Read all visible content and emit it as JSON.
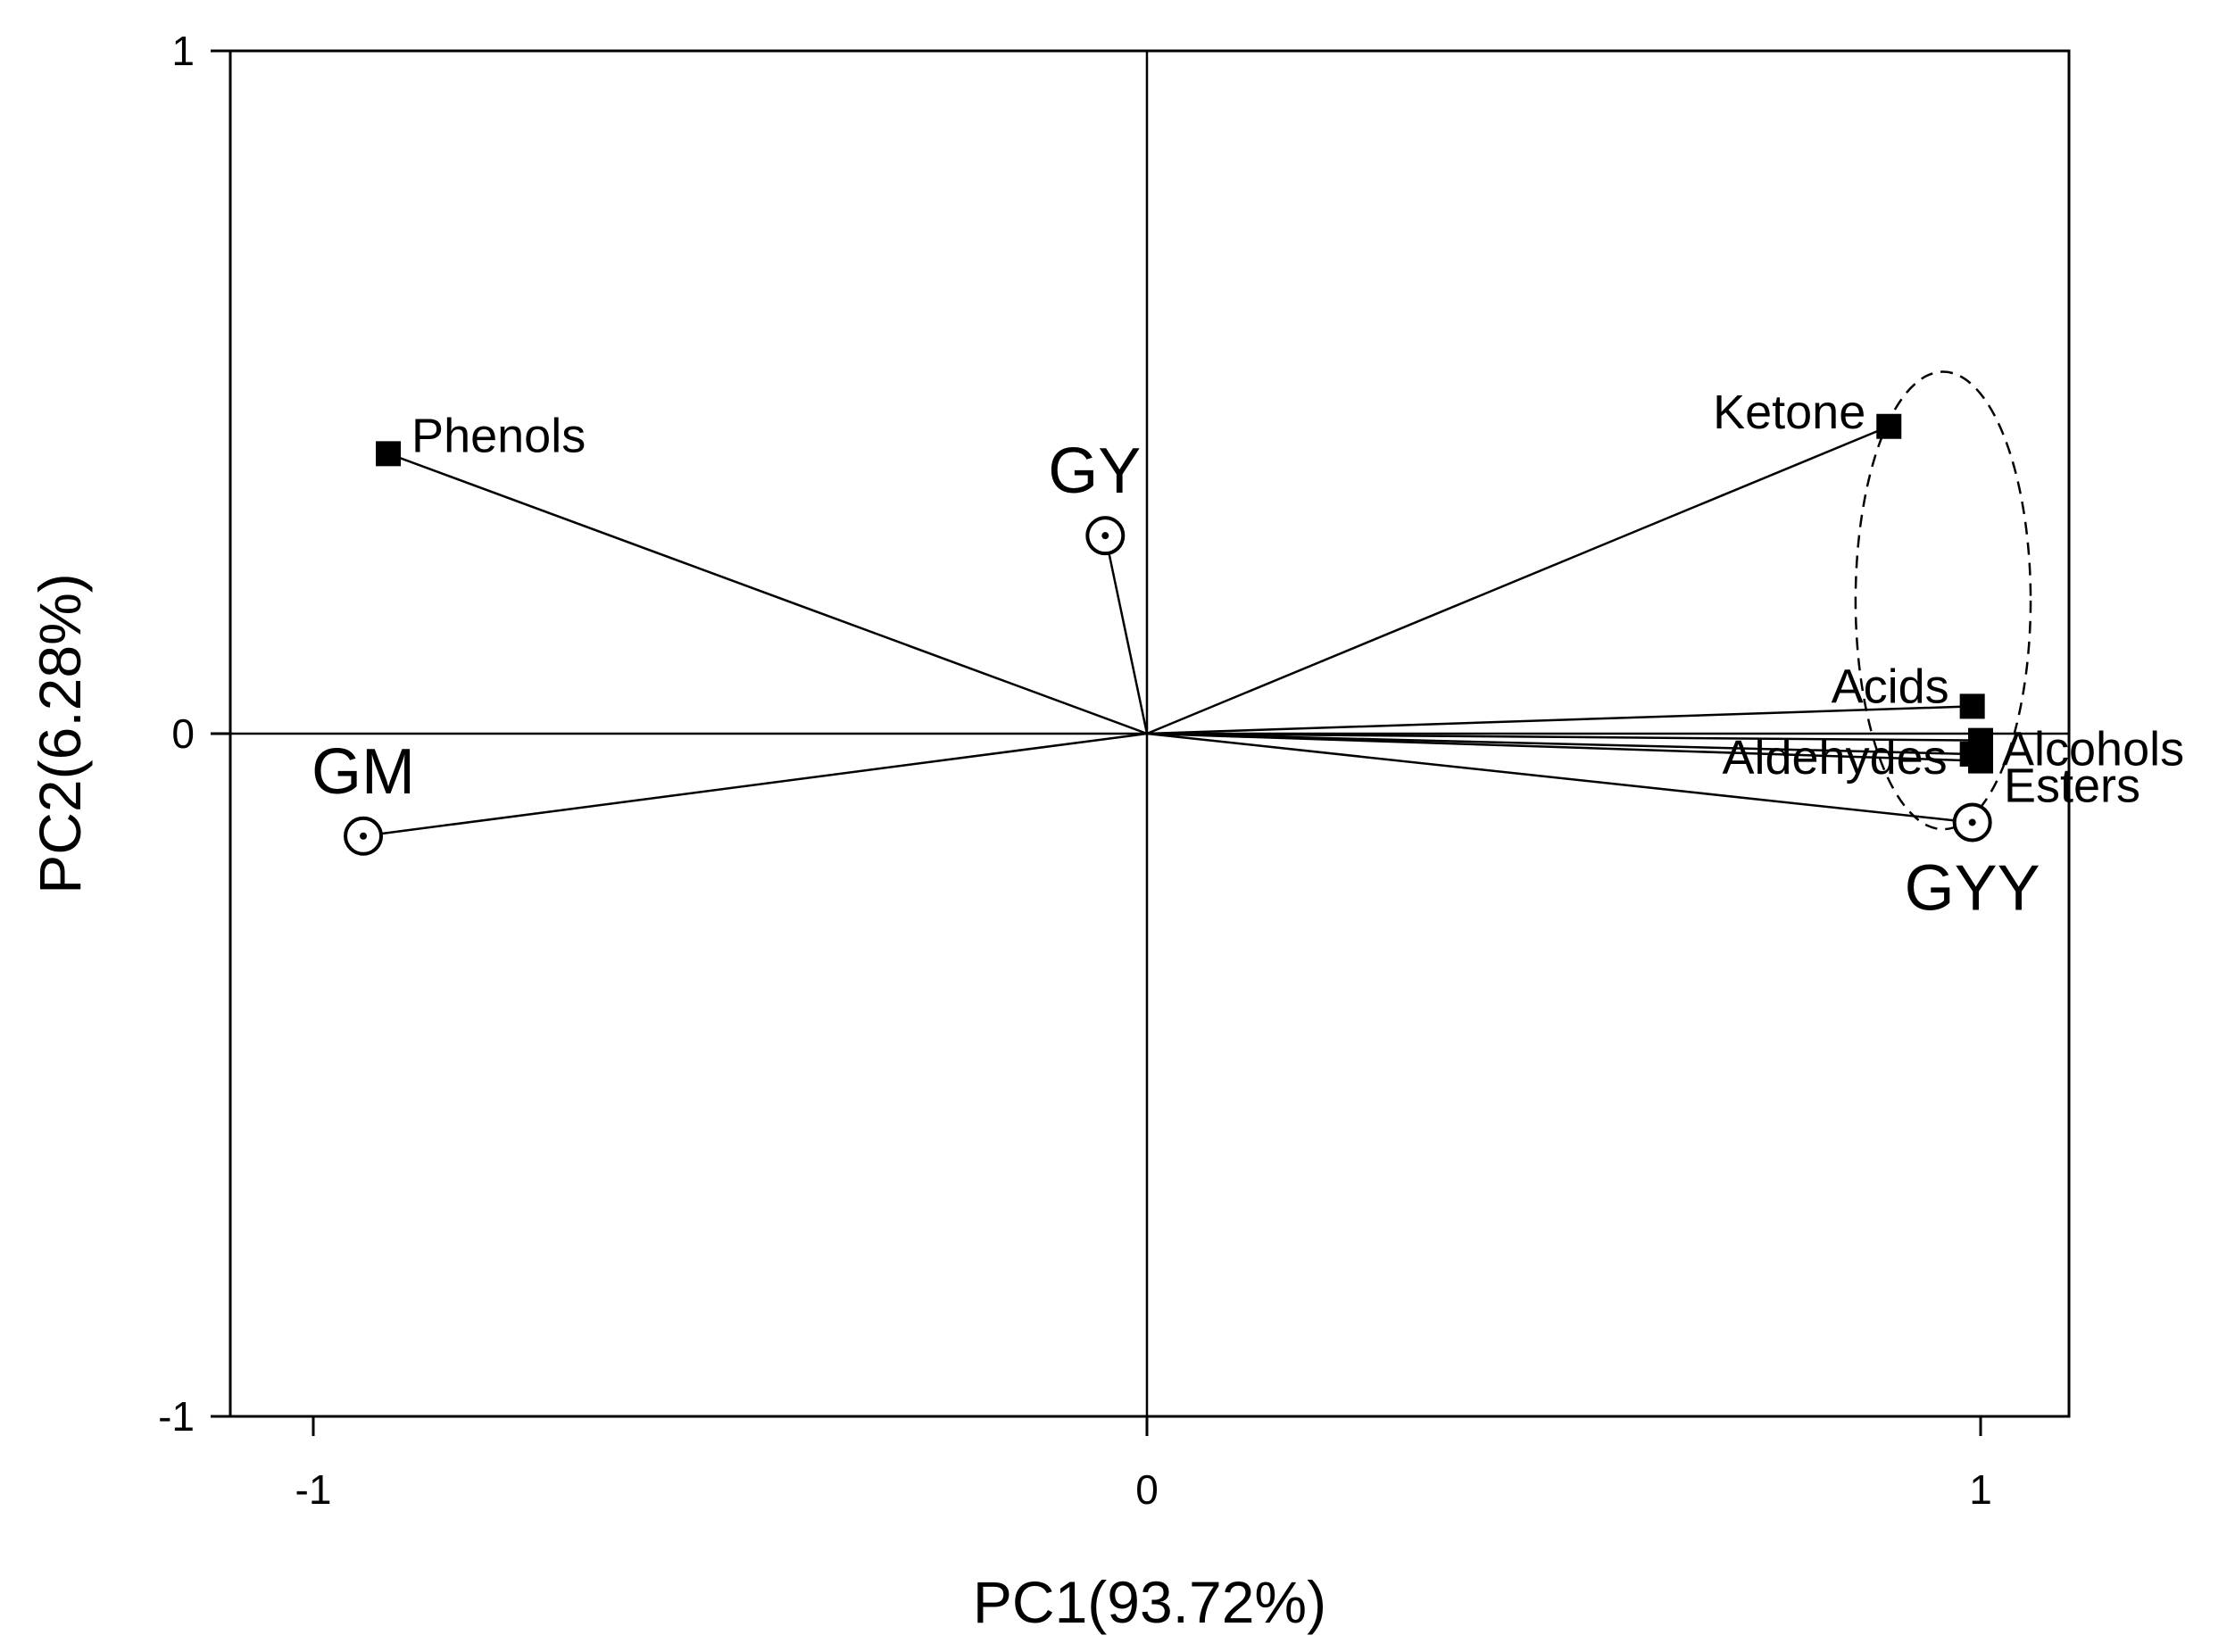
{
  "chart_data": {
    "type": "scatter",
    "subtype": "pca-biplot",
    "xlabel": "PC1(93.72%)",
    "ylabel": "PC2(6.28%)",
    "xlim": [
      -1.1,
      1.1
    ],
    "ylim": [
      -1,
      1
    ],
    "xticks": [
      -1,
      0,
      1
    ],
    "yticks": [
      -1,
      0,
      1
    ],
    "xtick_labels": [
      "-1",
      "0",
      "1"
    ],
    "ytick_labels": [
      "-1",
      "0",
      "1"
    ],
    "reference_lines": {
      "x": 0,
      "y": 0
    },
    "grid": false,
    "variables": [
      {
        "name": "Phenols",
        "x": -0.91,
        "y": 0.41,
        "marker": "square"
      },
      {
        "name": "Ketone",
        "x": 0.89,
        "y": 0.45,
        "marker": "square"
      },
      {
        "name": "Acids",
        "x": 0.99,
        "y": 0.04,
        "marker": "square"
      },
      {
        "name": "Alcohols",
        "x": 1.0,
        "y": -0.01,
        "marker": "square"
      },
      {
        "name": "Aldehydes",
        "x": 0.99,
        "y": -0.03,
        "marker": "square"
      },
      {
        "name": "Esters",
        "x": 1.0,
        "y": -0.04,
        "marker": "square"
      }
    ],
    "samples": [
      {
        "name": "GY",
        "x": -0.05,
        "y": 0.29,
        "marker": "circle-dot"
      },
      {
        "name": "GM",
        "x": -0.94,
        "y": -0.15,
        "marker": "circle-dot"
      },
      {
        "name": "GYY",
        "x": 0.99,
        "y": -0.13,
        "marker": "circle-dot"
      }
    ],
    "group_ellipse": {
      "members": [
        "Ketone",
        "Acids",
        "Alcohols",
        "Aldehydes",
        "Esters",
        "GYY"
      ],
      "center": [
        0.955,
        0.195
      ],
      "radii": [
        0.105,
        0.335
      ],
      "style": "dashed"
    }
  }
}
